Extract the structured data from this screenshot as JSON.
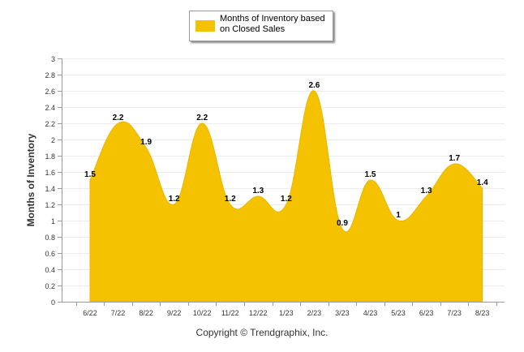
{
  "chart_data": {
    "type": "area",
    "categories": [
      "6/22",
      "7/22",
      "8/22",
      "9/22",
      "10/22",
      "11/22",
      "12/22",
      "1/23",
      "2/23",
      "3/23",
      "4/23",
      "5/23",
      "6/23",
      "7/23",
      "8/23"
    ],
    "series": [
      {
        "name": "Months of Inventory based on Closed Sales",
        "values": [
          1.5,
          2.2,
          1.9,
          1.2,
          2.2,
          1.2,
          1.3,
          1.2,
          2.6,
          0.9,
          1.5,
          1,
          1.3,
          1.7,
          1.4
        ],
        "labels": [
          "1.5",
          "2.2",
          "1.9",
          "1.2",
          "2.2",
          "1.2",
          "1.3",
          "1.2",
          "2.6",
          "0.9",
          "1.5",
          "1",
          "1.3",
          "1.7",
          "1.4"
        ]
      }
    ],
    "ylabel": "Months of Inventory",
    "ylim": [
      0,
      3
    ],
    "yticks": [
      0,
      0.2,
      0.4,
      0.6,
      0.8,
      1,
      1.2,
      1.4,
      1.6,
      1.8,
      2,
      2.2,
      2.4,
      2.6,
      2.8,
      3
    ],
    "ytick_labels": [
      "0",
      "0.2",
      "0.4",
      "0.6",
      "0.8",
      "1",
      "1.2",
      "1.4",
      "1.6",
      "1.8",
      "2",
      "2.2",
      "2.4",
      "2.6",
      "2.8",
      "3"
    ],
    "grid": true,
    "legend": "top-center",
    "color": "#f5c200"
  },
  "legend": {
    "label": "Months of Inventory based on Closed Sales"
  },
  "footer": {
    "copyright": "Copyright © Trendgraphix, Inc."
  }
}
